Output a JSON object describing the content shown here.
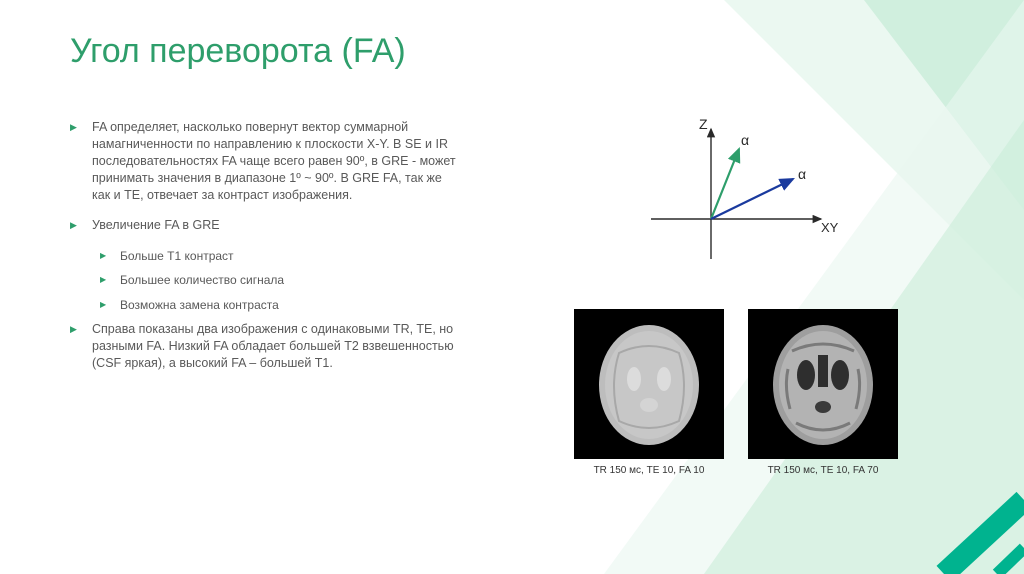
{
  "colors": {
    "title": "#2e9e6b",
    "bulletArrow": "#2e9e6b",
    "bodyText": "#595959",
    "axisStroke": "#2a2a2a",
    "vectorGreen": "#2e9e6b",
    "vectorBlue": "#1a3a9e",
    "bgTriLight": "#e9f7f0",
    "bgTriMid": "#c9ecd9",
    "bgBand": "#00B38F"
  },
  "title": "Угол переворота (FA)",
  "bullets": {
    "p1": "FA определяет, насколько повернут вектор суммарной намагниченности по направлению к плоскости X-Y. В SE и IR последовательностях FA чаще всего равен 90º, в GRE - может принимать значения в диапазоне 1º ~ 90º. В GRE FA, так же как и TE, отвечает за контраст изображения.",
    "p2": "Увеличение FA в GRE",
    "s1": "Больше Т1 контраст",
    "s2": "Большее количество сигнала",
    "s3": "Возможна замена контраста",
    "p3": "Справа показаны два изображения с одинаковыми TR, TE, но разными FA. Низкий FA обладает большей Т2 взвешенностью (CSF яркая), а высокий FA – большей Т1."
  },
  "axis": {
    "zLabel": "Z",
    "xyLabel": "XY",
    "alpha": "α"
  },
  "scans": {
    "left": {
      "caption": "TR 150 мс, TE 10, FA 10"
    },
    "right": {
      "caption": "TR 150 мс, TE 10, FA 70"
    }
  }
}
